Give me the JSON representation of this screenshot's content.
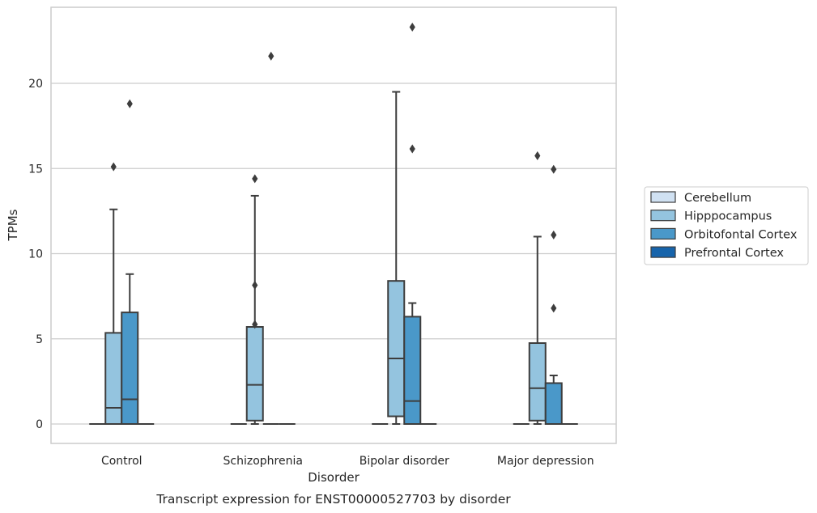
{
  "chart_data": {
    "type": "box",
    "xlabel": "Disorder",
    "ylabel": "TPMs",
    "caption": "Transcript expression for ENST00000527703 by disorder",
    "ylim": [
      -1.1,
      24.4
    ],
    "yticks": [
      0,
      5,
      10,
      15,
      20
    ],
    "grid": "horizontal",
    "legend_position": "right",
    "categories": [
      "Control",
      "Schizophrenia",
      "Bipolar disorder",
      "Major depression"
    ],
    "series": [
      {
        "name": "Cerebellum",
        "color": "#d0e1f2"
      },
      {
        "name": "Hipppocampus",
        "color": "#94c4df"
      },
      {
        "name": "Orbitofontal Cortex",
        "color": "#4a98c9"
      },
      {
        "name": "Prefrontal Cortex",
        "color": "#1764ab"
      }
    ],
    "boxes": [
      [
        {
          "whisker_low": 0,
          "q1": 0,
          "median": 0,
          "q3": 0,
          "whisker_high": 0,
          "outliers": []
        },
        {
          "whisker_low": 0,
          "q1": 0,
          "median": 0.95,
          "q3": 5.35,
          "whisker_high": 12.6,
          "outliers": [
            15.1
          ]
        },
        {
          "whisker_low": 0,
          "q1": 0,
          "median": 1.45,
          "q3": 6.55,
          "whisker_high": 8.8,
          "outliers": [
            18.8
          ]
        },
        {
          "whisker_low": 0,
          "q1": 0,
          "median": 0,
          "q3": 0,
          "whisker_high": 0,
          "outliers": []
        }
      ],
      [
        {
          "whisker_low": 0,
          "q1": 0,
          "median": 0,
          "q3": 0,
          "whisker_high": 0,
          "outliers": []
        },
        {
          "whisker_low": 0,
          "q1": 0.2,
          "median": 2.3,
          "q3": 5.7,
          "whisker_high": 13.4,
          "outliers": [
            14.4,
            8.15,
            5.85
          ]
        },
        {
          "whisker_low": 0,
          "q1": 0,
          "median": 0,
          "q3": 0,
          "whisker_high": 0,
          "outliers": [
            21.6
          ]
        },
        {
          "whisker_low": 0,
          "q1": 0,
          "median": 0,
          "q3": 0,
          "whisker_high": 0,
          "outliers": []
        }
      ],
      [
        {
          "whisker_low": 0,
          "q1": 0,
          "median": 0,
          "q3": 0,
          "whisker_high": 0,
          "outliers": []
        },
        {
          "whisker_low": 0,
          "q1": 0.45,
          "median": 3.85,
          "q3": 8.4,
          "whisker_high": 19.5,
          "outliers": []
        },
        {
          "whisker_low": 0,
          "q1": 0,
          "median": 1.35,
          "q3": 6.3,
          "whisker_high": 7.1,
          "outliers": [
            23.3,
            16.15
          ]
        },
        {
          "whisker_low": 0,
          "q1": 0,
          "median": 0,
          "q3": 0,
          "whisker_high": 0,
          "outliers": []
        }
      ],
      [
        {
          "whisker_low": 0,
          "q1": 0,
          "median": 0,
          "q3": 0,
          "whisker_high": 0,
          "outliers": []
        },
        {
          "whisker_low": 0,
          "q1": 0.2,
          "median": 2.1,
          "q3": 4.75,
          "whisker_high": 11.0,
          "outliers": [
            15.75
          ]
        },
        {
          "whisker_low": 0,
          "q1": 0,
          "median": 0,
          "q3": 2.4,
          "whisker_high": 2.85,
          "outliers": [
            14.95,
            11.1,
            6.8
          ]
        },
        {
          "whisker_low": 0,
          "q1": 0,
          "median": 0,
          "q3": 0,
          "whisker_high": 0,
          "outliers": []
        }
      ]
    ]
  }
}
